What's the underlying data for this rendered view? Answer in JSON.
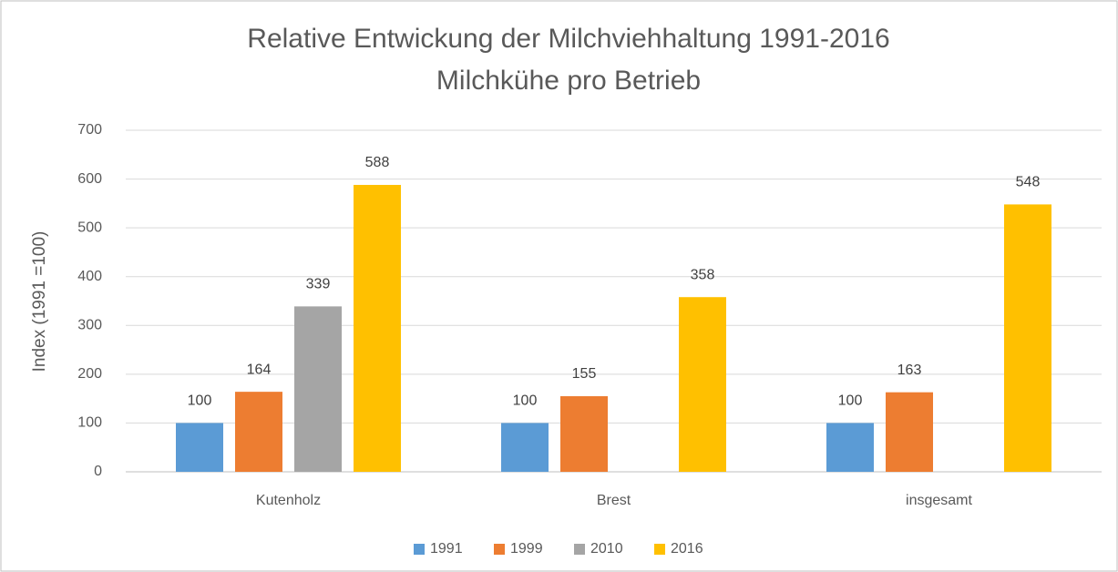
{
  "chart_data": {
    "type": "bar",
    "title": "Relative Entwickung der Milchviehhaltung 1991-2016",
    "subtitle": "Milchkühe pro Betrieb",
    "y_label": "Index (1991 =100)",
    "categories": [
      "Kutenholz",
      "Brest",
      "insgesamt"
    ],
    "series": [
      {
        "name": "1991",
        "color": "#5b9bd5",
        "values": [
          100,
          100,
          100
        ]
      },
      {
        "name": "1999",
        "color": "#ed7d31",
        "values": [
          164,
          155,
          163
        ]
      },
      {
        "name": "2010",
        "color": "#a5a5a5",
        "values": [
          339,
          null,
          null
        ]
      },
      {
        "name": "2016",
        "color": "#ffc000",
        "values": [
          588,
          358,
          548
        ]
      }
    ],
    "ylim": [
      0,
      700
    ],
    "yticks": [
      0,
      100,
      200,
      300,
      400,
      500,
      600,
      700
    ],
    "grid": true,
    "data_labels": true,
    "legend": "bottom"
  }
}
